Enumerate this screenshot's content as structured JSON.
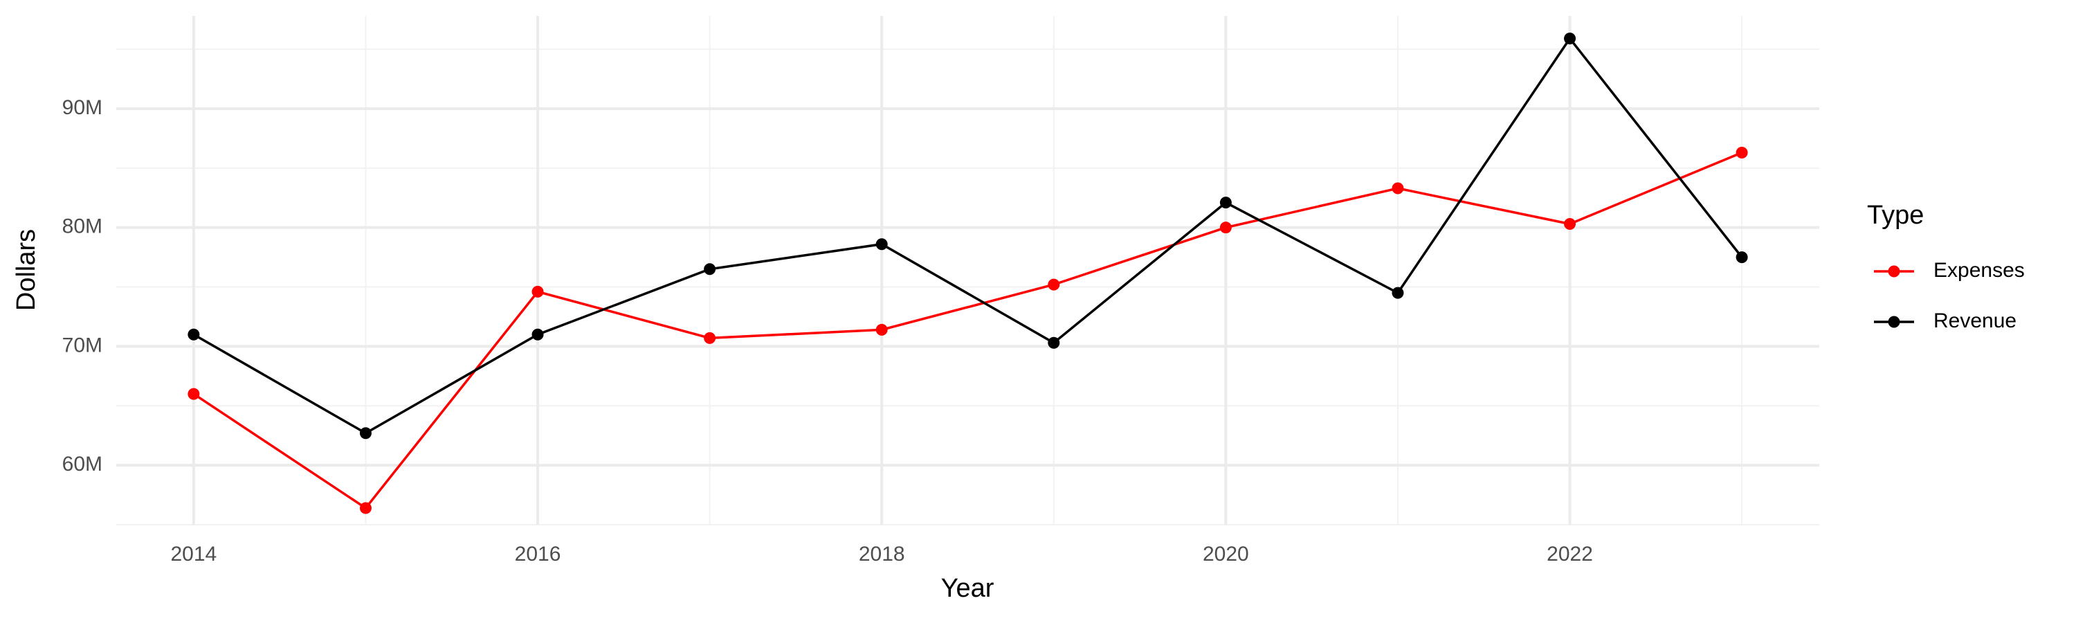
{
  "chart_data": {
    "type": "line",
    "x_label": "Year",
    "y_label": "Dollars",
    "legend_title": "Type",
    "legend_position": "right",
    "grid": true,
    "minor_grid": true,
    "x": [
      2014,
      2015,
      2016,
      2017,
      2018,
      2019,
      2020,
      2021,
      2022,
      2023
    ],
    "xlim": [
      2013.55,
      2023.45
    ],
    "xticks": [
      2014,
      2016,
      2018,
      2020,
      2022
    ],
    "ylim": [
      55000000,
      97800000
    ],
    "yticks": [
      {
        "value": 60000000,
        "label": "60M"
      },
      {
        "value": 70000000,
        "label": "70M"
      },
      {
        "value": 80000000,
        "label": "80M"
      },
      {
        "value": 90000000,
        "label": "90M"
      }
    ],
    "series": [
      {
        "name": "Expenses",
        "color": "#ff0000",
        "values": [
          66000000,
          56400000,
          74600000,
          70700000,
          71400000,
          75200000,
          80000000,
          83300000,
          80300000,
          86300000
        ]
      },
      {
        "name": "Revenue",
        "color": "#000000",
        "values": [
          71000000,
          62700000,
          71000000,
          76500000,
          78600000,
          70300000,
          82100000,
          74500000,
          95900000,
          77500000
        ]
      }
    ]
  }
}
